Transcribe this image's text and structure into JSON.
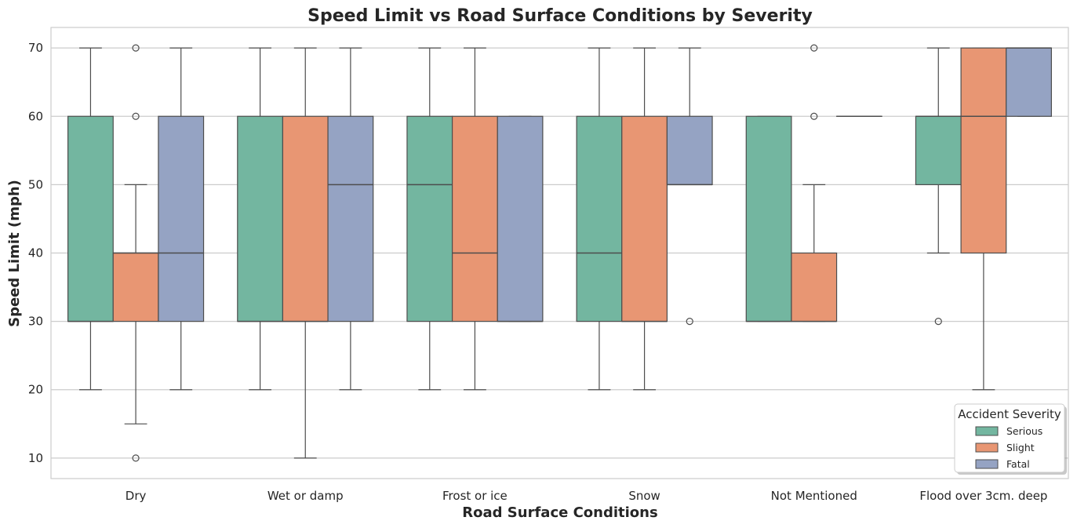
{
  "chart_data": {
    "type": "boxplot",
    "title": "Speed Limit vs Road Surface Conditions by Severity",
    "xlabel": "Road Surface Conditions",
    "ylabel": "Speed Limit (mph)",
    "ylim": [
      7,
      73
    ],
    "yticks": [
      10,
      20,
      30,
      40,
      50,
      60,
      70
    ],
    "grid": "horizontal",
    "categories": [
      "Dry",
      "Wet or damp",
      "Frost or ice",
      "Snow",
      "Not Mentioned",
      "Flood over 3cm. deep"
    ],
    "legend": {
      "title": "Accident Severity",
      "position": "bottom-right",
      "entries": [
        {
          "name": "Serious",
          "color": "#73b6a0"
        },
        {
          "name": "Slight",
          "color": "#e89673"
        },
        {
          "name": "Fatal",
          "color": "#95a3c3"
        }
      ]
    },
    "series": [
      {
        "name": "Serious",
        "color": "#73b6a0",
        "boxes": [
          {
            "category": "Dry",
            "whislo": 20,
            "q1": 30,
            "med": 30,
            "q3": 60,
            "whishi": 70,
            "fliers": []
          },
          {
            "category": "Wet or damp",
            "whislo": 20,
            "q1": 30,
            "med": 30,
            "q3": 60,
            "whishi": 70,
            "fliers": []
          },
          {
            "category": "Frost or ice",
            "whislo": 20,
            "q1": 30,
            "med": 50,
            "q3": 60,
            "whishi": 70,
            "fliers": []
          },
          {
            "category": "Snow",
            "whislo": 20,
            "q1": 30,
            "med": 40,
            "q3": 60,
            "whishi": 70,
            "fliers": []
          },
          {
            "category": "Not Mentioned",
            "whislo": 30,
            "q1": 30,
            "med": 30,
            "q3": 60,
            "whishi": 60,
            "fliers": []
          },
          {
            "category": "Flood over 3cm. deep",
            "whislo": 40,
            "q1": 50,
            "med": 60,
            "q3": 60,
            "whishi": 70,
            "fliers": [
              30
            ]
          }
        ]
      },
      {
        "name": "Slight",
        "color": "#e89673",
        "boxes": [
          {
            "category": "Dry",
            "whislo": 15,
            "q1": 30,
            "med": 40,
            "q3": 40,
            "whishi": 50,
            "fliers": [
              10,
              60,
              70
            ]
          },
          {
            "category": "Wet or damp",
            "whislo": 10,
            "q1": 30,
            "med": 30,
            "q3": 60,
            "whishi": 70,
            "fliers": []
          },
          {
            "category": "Frost or ice",
            "whislo": 20,
            "q1": 30,
            "med": 40,
            "q3": 60,
            "whishi": 70,
            "fliers": []
          },
          {
            "category": "Snow",
            "whislo": 20,
            "q1": 30,
            "med": 30,
            "q3": 60,
            "whishi": 70,
            "fliers": []
          },
          {
            "category": "Not Mentioned",
            "whislo": 30,
            "q1": 30,
            "med": 30,
            "q3": 40,
            "whishi": 50,
            "fliers": [
              60,
              70
            ]
          },
          {
            "category": "Flood over 3cm. deep",
            "whislo": 20,
            "q1": 40,
            "med": 60,
            "q3": 70,
            "whishi": 70,
            "fliers": []
          }
        ]
      },
      {
        "name": "Fatal",
        "color": "#95a3c3",
        "boxes": [
          {
            "category": "Dry",
            "whislo": 20,
            "q1": 30,
            "med": 40,
            "q3": 60,
            "whishi": 70,
            "fliers": []
          },
          {
            "category": "Wet or damp",
            "whislo": 20,
            "q1": 30,
            "med": 50,
            "q3": 60,
            "whishi": 70,
            "fliers": []
          },
          {
            "category": "Frost or ice",
            "whislo": 30,
            "q1": 30,
            "med": 30,
            "q3": 60,
            "whishi": 60,
            "fliers": []
          },
          {
            "category": "Snow",
            "whislo": 50,
            "q1": 50,
            "med": 50,
            "q3": 60,
            "whishi": 70,
            "fliers": [
              30
            ]
          },
          {
            "category": "Not Mentioned",
            "whislo": 60,
            "q1": 60,
            "med": 60,
            "q3": 60,
            "whishi": 60,
            "fliers": []
          },
          {
            "category": "Flood over 3cm. deep",
            "whislo": 60,
            "q1": 60,
            "med": 70,
            "q3": 70,
            "whishi": 70,
            "fliers": []
          }
        ]
      }
    ]
  }
}
